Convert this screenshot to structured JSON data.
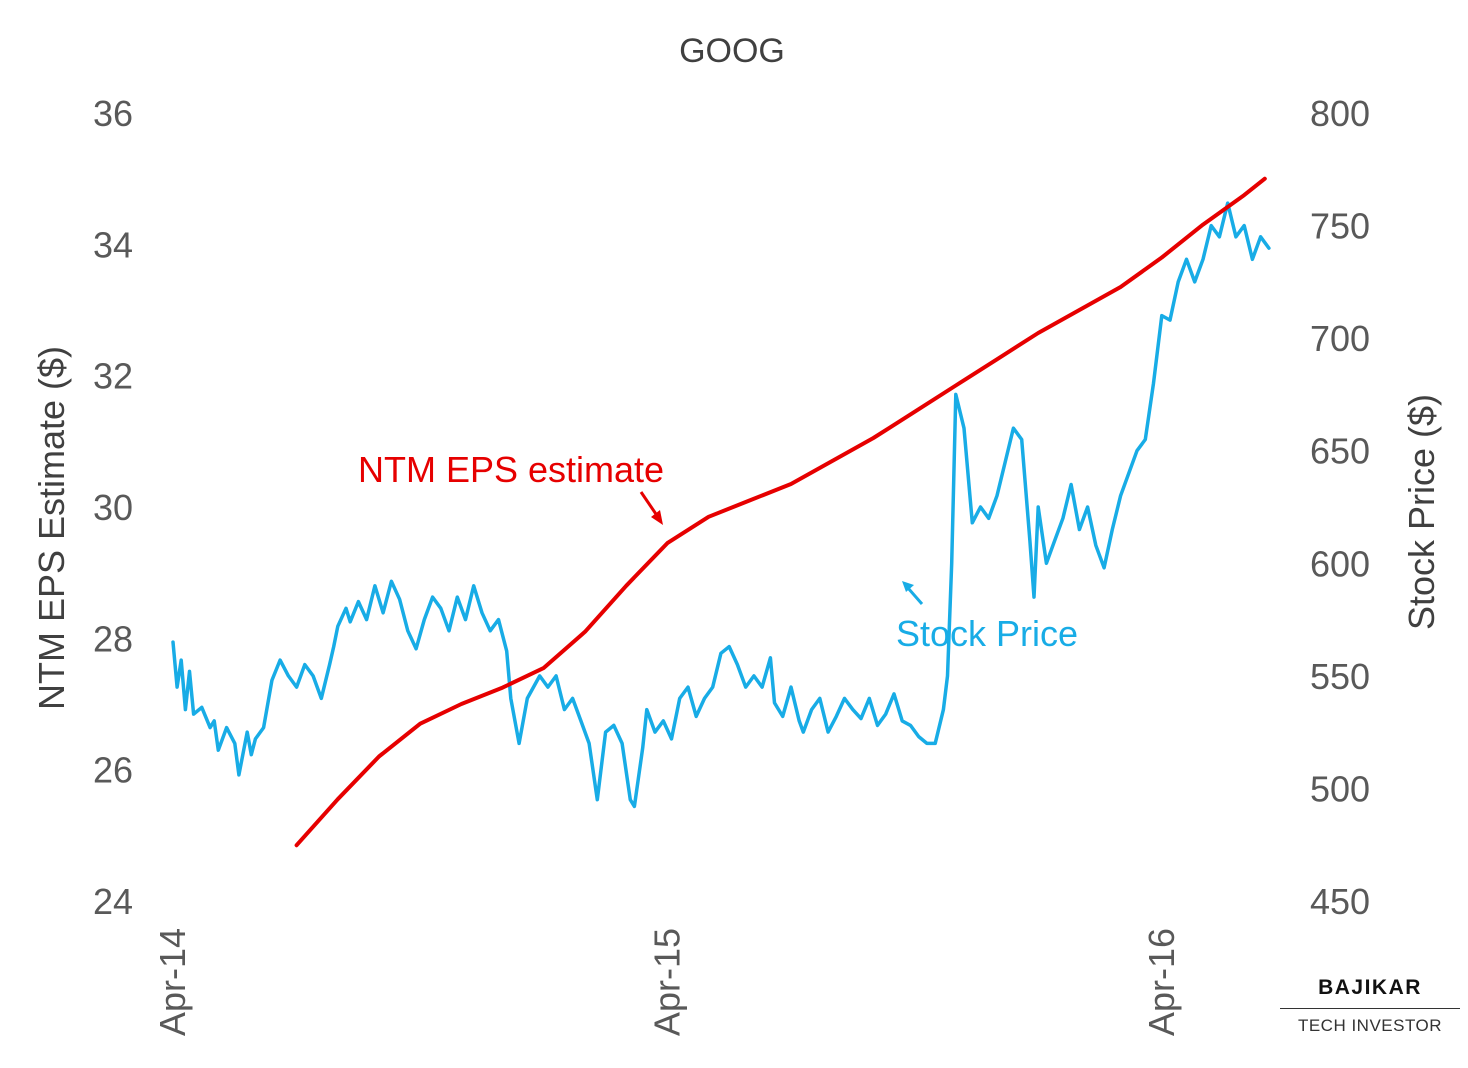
{
  "chart_data": {
    "type": "line",
    "title": "GOOG",
    "y_left": {
      "label": "NTM EPS Estimate ($)",
      "range": [
        24,
        36
      ],
      "ticks": [
        24,
        26,
        28,
        30,
        32,
        34,
        36
      ]
    },
    "y_right": {
      "label": "Stock Price ($)",
      "range": [
        450,
        800
      ],
      "ticks": [
        450,
        500,
        550,
        600,
        650,
        700,
        750,
        800
      ]
    },
    "x_axis": {
      "tick_labels": [
        "Apr-14",
        "Apr-15",
        "Apr-16"
      ],
      "tick_values": [
        0,
        12,
        24
      ],
      "range": [
        0,
        26.7
      ],
      "unit": "months since Apr-14"
    },
    "grid": false,
    "legend": "none (inline annotations)",
    "series": [
      {
        "name": "NTM EPS estimate",
        "axis": "left",
        "color": "#e60000",
        "points": [
          [
            3.0,
            24.85
          ],
          [
            4.0,
            25.55
          ],
          [
            5.0,
            26.2
          ],
          [
            6.0,
            26.7
          ],
          [
            7.0,
            27.0
          ],
          [
            8.0,
            27.25
          ],
          [
            9.0,
            27.55
          ],
          [
            10.0,
            28.1
          ],
          [
            11.0,
            28.8
          ],
          [
            12.0,
            29.45
          ],
          [
            13.0,
            29.85
          ],
          [
            14.0,
            30.1
          ],
          [
            15.0,
            30.35
          ],
          [
            16.0,
            30.7
          ],
          [
            17.0,
            31.05
          ],
          [
            18.0,
            31.45
          ],
          [
            19.0,
            31.85
          ],
          [
            20.0,
            32.25
          ],
          [
            21.0,
            32.65
          ],
          [
            22.0,
            33.0
          ],
          [
            23.0,
            33.35
          ],
          [
            24.0,
            33.8
          ],
          [
            25.0,
            34.3
          ],
          [
            26.0,
            34.75
          ],
          [
            26.5,
            35.0
          ]
        ]
      },
      {
        "name": "Stock Price",
        "axis": "right",
        "color": "#18ace6",
        "points": [
          [
            0.0,
            565
          ],
          [
            0.1,
            545
          ],
          [
            0.2,
            557
          ],
          [
            0.3,
            535
          ],
          [
            0.4,
            552
          ],
          [
            0.5,
            533
          ],
          [
            0.7,
            536
          ],
          [
            0.9,
            527
          ],
          [
            1.0,
            530
          ],
          [
            1.1,
            517
          ],
          [
            1.3,
            527
          ],
          [
            1.5,
            520
          ],
          [
            1.6,
            506
          ],
          [
            1.8,
            525
          ],
          [
            1.9,
            515
          ],
          [
            2.0,
            522
          ],
          [
            2.2,
            527
          ],
          [
            2.4,
            548
          ],
          [
            2.6,
            557
          ],
          [
            2.8,
            550
          ],
          [
            3.0,
            545
          ],
          [
            3.2,
            555
          ],
          [
            3.4,
            550
          ],
          [
            3.6,
            540
          ],
          [
            3.8,
            555
          ],
          [
            3.9,
            563
          ],
          [
            4.0,
            572
          ],
          [
            4.2,
            580
          ],
          [
            4.3,
            574
          ],
          [
            4.5,
            583
          ],
          [
            4.7,
            575
          ],
          [
            4.9,
            590
          ],
          [
            5.1,
            578
          ],
          [
            5.3,
            592
          ],
          [
            5.5,
            584
          ],
          [
            5.7,
            570
          ],
          [
            5.9,
            562
          ],
          [
            6.1,
            575
          ],
          [
            6.3,
            585
          ],
          [
            6.5,
            580
          ],
          [
            6.7,
            570
          ],
          [
            6.9,
            585
          ],
          [
            7.1,
            575
          ],
          [
            7.3,
            590
          ],
          [
            7.5,
            578
          ],
          [
            7.7,
            570
          ],
          [
            7.9,
            575
          ],
          [
            8.1,
            561
          ],
          [
            8.2,
            540
          ],
          [
            8.4,
            520
          ],
          [
            8.6,
            540
          ],
          [
            8.9,
            550
          ],
          [
            9.1,
            545
          ],
          [
            9.3,
            550
          ],
          [
            9.5,
            535
          ],
          [
            9.7,
            540
          ],
          [
            9.9,
            530
          ],
          [
            10.1,
            520
          ],
          [
            10.3,
            495
          ],
          [
            10.5,
            525
          ],
          [
            10.7,
            528
          ],
          [
            10.9,
            520
          ],
          [
            11.1,
            495
          ],
          [
            11.2,
            492
          ],
          [
            11.4,
            518
          ],
          [
            11.5,
            535
          ],
          [
            11.7,
            525
          ],
          [
            11.9,
            530
          ],
          [
            12.1,
            522
          ],
          [
            12.3,
            540
          ],
          [
            12.5,
            545
          ],
          [
            12.7,
            532
          ],
          [
            12.9,
            540
          ],
          [
            13.1,
            545
          ],
          [
            13.3,
            560
          ],
          [
            13.5,
            563
          ],
          [
            13.7,
            555
          ],
          [
            13.9,
            545
          ],
          [
            14.1,
            550
          ],
          [
            14.3,
            545
          ],
          [
            14.5,
            558
          ],
          [
            14.6,
            538
          ],
          [
            14.8,
            532
          ],
          [
            15.0,
            545
          ],
          [
            15.2,
            530
          ],
          [
            15.3,
            525
          ],
          [
            15.5,
            535
          ],
          [
            15.7,
            540
          ],
          [
            15.9,
            525
          ],
          [
            16.1,
            532
          ],
          [
            16.3,
            540
          ],
          [
            16.5,
            535
          ],
          [
            16.7,
            531
          ],
          [
            16.9,
            540
          ],
          [
            17.1,
            528
          ],
          [
            17.3,
            533
          ],
          [
            17.5,
            542
          ],
          [
            17.7,
            530
          ],
          [
            17.9,
            528
          ],
          [
            18.1,
            523
          ],
          [
            18.3,
            520
          ],
          [
            18.5,
            520
          ],
          [
            18.7,
            535
          ],
          [
            18.8,
            550
          ],
          [
            18.9,
            600
          ],
          [
            19.0,
            675
          ],
          [
            19.2,
            660
          ],
          [
            19.4,
            618
          ],
          [
            19.6,
            625
          ],
          [
            19.8,
            620
          ],
          [
            20.0,
            630
          ],
          [
            20.2,
            645
          ],
          [
            20.4,
            660
          ],
          [
            20.6,
            655
          ],
          [
            20.8,
            610
          ],
          [
            20.9,
            585
          ],
          [
            21.0,
            625
          ],
          [
            21.2,
            600
          ],
          [
            21.4,
            610
          ],
          [
            21.6,
            620
          ],
          [
            21.8,
            635
          ],
          [
            22.0,
            615
          ],
          [
            22.2,
            625
          ],
          [
            22.4,
            608
          ],
          [
            22.6,
            598
          ],
          [
            22.8,
            615
          ],
          [
            23.0,
            630
          ],
          [
            23.2,
            640
          ],
          [
            23.4,
            650
          ],
          [
            23.6,
            655
          ],
          [
            23.8,
            680
          ],
          [
            24.0,
            710
          ],
          [
            24.2,
            708
          ],
          [
            24.4,
            725
          ],
          [
            24.6,
            735
          ],
          [
            24.8,
            725
          ],
          [
            25.0,
            735
          ],
          [
            25.2,
            750
          ],
          [
            25.4,
            745
          ],
          [
            25.6,
            760
          ],
          [
            25.8,
            745
          ],
          [
            26.0,
            750
          ],
          [
            26.2,
            735
          ],
          [
            26.4,
            745
          ],
          [
            26.6,
            740
          ]
        ]
      }
    ],
    "annotations": [
      {
        "text": "NTM EPS estimate",
        "color": "#e60000"
      },
      {
        "text": "Stock Price",
        "color": "#18ace6"
      }
    ]
  },
  "brand": {
    "name": "BAJIKAR",
    "tagline": "TECH INVESTOR"
  }
}
